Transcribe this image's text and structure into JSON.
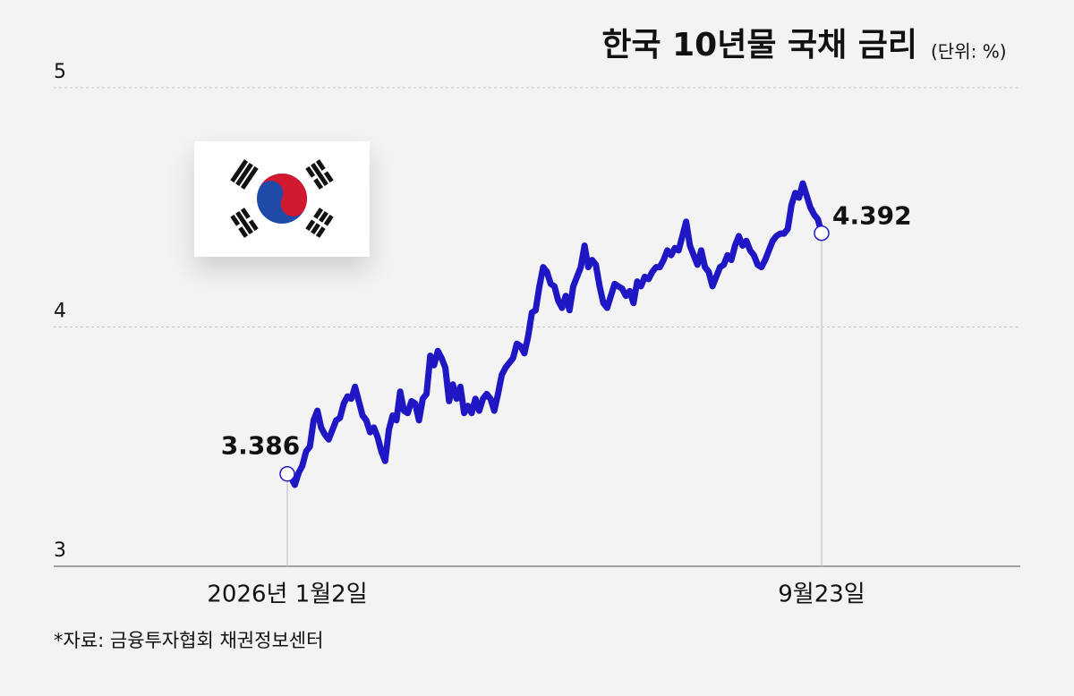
{
  "chart_data": {
    "type": "line",
    "title": "한국 10년물 국채 금리",
    "subtitle": "(단위: %)",
    "source": "*자료: 금융투자협회 채권정보센터",
    "color": "#1f16c4",
    "ylim": [
      3,
      5
    ],
    "yticks": [
      3,
      4,
      5
    ],
    "grid": true,
    "categories": [
      "2026년 1월2일",
      null,
      null,
      null,
      null,
      null,
      null,
      null,
      null,
      null,
      null,
      null,
      null,
      null,
      null,
      null,
      null,
      null,
      null,
      null,
      null,
      null,
      null,
      null,
      null,
      null,
      null,
      null,
      null,
      null,
      null,
      null,
      null,
      null,
      null,
      null,
      null,
      null,
      null,
      null,
      null,
      null,
      null,
      null,
      null,
      null,
      null,
      null,
      null,
      null,
      null,
      null,
      null,
      null,
      null,
      null,
      null,
      null,
      null,
      null,
      null,
      null,
      null,
      null,
      null,
      null,
      null,
      null,
      null,
      null,
      null,
      null,
      null,
      null,
      null,
      null,
      null,
      null,
      null,
      null,
      null,
      null,
      null,
      null,
      null,
      null,
      null,
      null,
      null,
      null,
      null,
      null,
      null,
      null,
      null,
      null,
      null,
      null,
      null,
      null,
      null,
      null,
      null,
      null,
      null,
      null,
      null,
      null,
      null,
      null,
      null,
      null,
      null,
      null,
      null,
      null,
      null,
      null,
      null,
      null,
      null,
      null,
      null,
      null,
      null,
      null,
      null,
      null,
      null,
      null,
      null,
      null,
      null,
      null,
      null,
      null,
      null,
      null,
      null,
      null,
      null,
      null,
      "9월23일"
    ],
    "values": [
      3.386,
      3.37,
      3.34,
      3.39,
      3.42,
      3.48,
      3.5,
      3.61,
      3.65,
      3.58,
      3.55,
      3.53,
      3.57,
      3.61,
      3.62,
      3.68,
      3.71,
      3.7,
      3.75,
      3.69,
      3.63,
      3.61,
      3.56,
      3.58,
      3.54,
      3.48,
      3.44,
      3.57,
      3.63,
      3.61,
      3.73,
      3.65,
      3.64,
      3.69,
      3.68,
      3.61,
      3.7,
      3.72,
      3.88,
      3.84,
      3.9,
      3.87,
      3.83,
      3.69,
      3.76,
      3.7,
      3.75,
      3.64,
      3.67,
      3.64,
      3.7,
      3.65,
      3.7,
      3.72,
      3.7,
      3.65,
      3.72,
      3.8,
      3.83,
      3.85,
      3.87,
      3.93,
      3.92,
      3.89,
      3.96,
      4.06,
      4.07,
      4.17,
      4.25,
      4.23,
      4.18,
      4.17,
      4.11,
      4.08,
      4.13,
      4.07,
      4.17,
      4.21,
      4.25,
      4.34,
      4.25,
      4.28,
      4.26,
      4.17,
      4.1,
      4.08,
      4.13,
      4.18,
      4.17,
      4.16,
      4.13,
      4.15,
      4.1,
      4.19,
      4.17,
      4.21,
      4.2,
      4.23,
      4.25,
      4.25,
      4.28,
      4.32,
      4.3,
      4.33,
      4.32,
      4.38,
      4.44,
      4.34,
      4.3,
      4.26,
      4.32,
      4.25,
      4.23,
      4.17,
      4.21,
      4.25,
      4.26,
      4.3,
      4.28,
      4.34,
      4.38,
      4.34,
      4.36,
      4.32,
      4.3,
      4.26,
      4.25,
      4.28,
      4.32,
      4.36,
      4.38,
      4.39,
      4.39,
      4.41,
      4.51,
      4.56,
      4.54,
      4.6,
      4.55,
      4.5,
      4.47,
      4.45,
      4.392
    ]
  }
}
